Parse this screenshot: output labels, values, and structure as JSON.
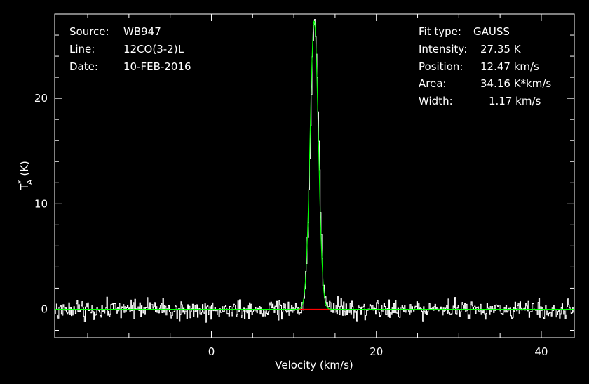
{
  "header_left": [
    {
      "key": "Source:",
      "value": "WB947"
    },
    {
      "key": "Line:",
      "value": "12CO(3-2)L"
    },
    {
      "key": "Date:",
      "value": "10-FEB-2016"
    }
  ],
  "header_right": [
    {
      "key": "Fit type:",
      "value": "GAUSS"
    },
    {
      "key": "Intensity:",
      "value": "27.35 K"
    },
    {
      "key": "Position:",
      "value": "12.47 km/s"
    },
    {
      "key": "Area:",
      "value": "34.16 K*km/s"
    },
    {
      "key": "Width:",
      "value": "1.17 km/s"
    }
  ],
  "chart_data": {
    "type": "line",
    "xlabel": "Velocity (km/s)",
    "ylabel_main": "T",
    "ylabel_sup": "*",
    "ylabel_sub": "A",
    "ylabel_unit": "(K)",
    "xlim": [
      -19,
      44
    ],
    "ylim": [
      -2.7,
      28
    ],
    "x_ticks": [
      0,
      20,
      40
    ],
    "y_ticks": [
      0,
      10,
      20
    ],
    "series": [
      {
        "role": "observed spectrum",
        "color": "#ffffff",
        "style": "step",
        "x_range": [
          -19,
          44
        ],
        "noise_rms": 0.45
      },
      {
        "role": "gaussian fit",
        "color": "#00ff00",
        "model": "gauss",
        "amplitude": 27.35,
        "center": 12.47,
        "fwhm": 1.17
      },
      {
        "role": "baseline",
        "color": "#ff0000",
        "x_range": [
          10.6,
          14.4
        ],
        "y": 0
      }
    ],
    "frame_color": "#ffffff"
  }
}
